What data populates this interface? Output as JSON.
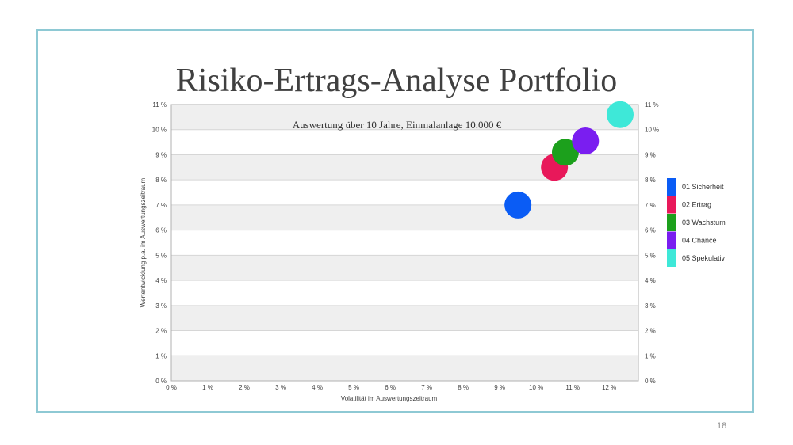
{
  "slide": {
    "title": "Risiko-Ertrags-Analyse Portfolio",
    "page_number": "18",
    "frame_color": "#8ec9d4"
  },
  "chart_data": {
    "type": "scatter",
    "subtitle": "Auswertung über 10 Jahre, Einmalanlage 10.000 €",
    "xlabel": "Volatilität im Auswertungszeitraum",
    "ylabel": "Wertentwicklung p.a. im Auswertungszeitraum",
    "xlim": [
      0,
      12.8
    ],
    "ylim": [
      0,
      11
    ],
    "x_ticks": [
      "0 %",
      "1 %",
      "2 %",
      "3 %",
      "4 %",
      "5 %",
      "6 %",
      "7 %",
      "8 %",
      "9 %",
      "10 %",
      "11 %",
      "12 %"
    ],
    "y_ticks": [
      "0 %",
      "1 %",
      "2 %",
      "3 %",
      "4 %",
      "5 %",
      "6 %",
      "7 %",
      "8 %",
      "9 %",
      "10 %",
      "11 %"
    ],
    "y_ticks_right": true,
    "grid": "horizontal alternating bands",
    "legend_position": "right",
    "series": [
      {
        "name": "01 Sicherheit",
        "color": "#0a5cf5",
        "x": 9.5,
        "y": 7.0
      },
      {
        "name": "02 Ertrag",
        "color": "#e8185a",
        "x": 10.5,
        "y": 8.5
      },
      {
        "name": "03 Wachstum",
        "color": "#1ca01c",
        "x": 10.8,
        "y": 9.1
      },
      {
        "name": "04 Chance",
        "color": "#7a1ef0",
        "x": 11.35,
        "y": 9.55
      },
      {
        "name": "05 Spekulativ",
        "color": "#3ee8d8",
        "x": 12.3,
        "y": 10.6
      }
    ]
  }
}
